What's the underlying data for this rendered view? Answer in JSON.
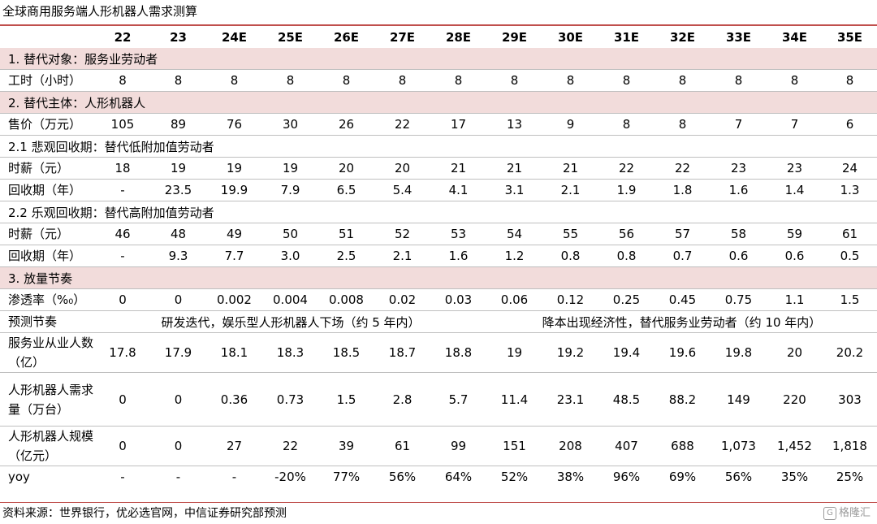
{
  "title": "全球商用服务端人形机器人需求测算",
  "years": [
    "22",
    "23",
    "24E",
    "25E",
    "26E",
    "27E",
    "28E",
    "29E",
    "30E",
    "31E",
    "32E",
    "33E",
    "34E",
    "35E"
  ],
  "sections": {
    "s1": "1. 替代对象：服务业劳动者",
    "s2": "2. 替代主体：人形机器人",
    "s21": "2.1 悲观回收期：替代低附加值劳动者",
    "s22": "2.2 乐观回收期：替代高附加值劳动者",
    "s3": "3. 放量节奏"
  },
  "rows": {
    "hours": {
      "label": "工时（小时）",
      "values": [
        "8",
        "8",
        "8",
        "8",
        "8",
        "8",
        "8",
        "8",
        "8",
        "8",
        "8",
        "8",
        "8",
        "8"
      ]
    },
    "price": {
      "label": "售价（万元）",
      "values": [
        "105",
        "89",
        "76",
        "30",
        "26",
        "22",
        "17",
        "13",
        "9",
        "8",
        "8",
        "7",
        "7",
        "6"
      ]
    },
    "wage_low": {
      "label": "时薪（元）",
      "values": [
        "18",
        "19",
        "19",
        "19",
        "20",
        "20",
        "21",
        "21",
        "21",
        "22",
        "22",
        "23",
        "23",
        "24"
      ]
    },
    "payback_low": {
      "label": "回收期（年）",
      "values": [
        "-",
        "23.5",
        "19.9",
        "7.9",
        "6.5",
        "5.4",
        "4.1",
        "3.1",
        "2.1",
        "1.9",
        "1.8",
        "1.6",
        "1.4",
        "1.3"
      ]
    },
    "wage_high": {
      "label": "时薪（元）",
      "values": [
        "46",
        "48",
        "49",
        "50",
        "51",
        "52",
        "53",
        "54",
        "55",
        "56",
        "57",
        "58",
        "59",
        "61"
      ]
    },
    "payback_high": {
      "label": "回收期（年）",
      "values": [
        "-",
        "9.3",
        "7.7",
        "3.0",
        "2.5",
        "2.1",
        "1.6",
        "1.2",
        "0.8",
        "0.8",
        "0.7",
        "0.6",
        "0.6",
        "0.5"
      ]
    },
    "penetration": {
      "label": "渗透率（%₀）",
      "values": [
        "0",
        "0",
        "0.002",
        "0.004",
        "0.008",
        "0.02",
        "0.03",
        "0.06",
        "0.12",
        "0.25",
        "0.45",
        "0.75",
        "1.1",
        "1.5"
      ]
    },
    "rhythm": {
      "label": "预测节奏",
      "phase1": "研发迭代，娱乐型人形机器人下场（约 5 年内）",
      "phase2": "降本出现经济性，替代服务业劳动者（约 10 年内）"
    },
    "workers": {
      "label": "服务业从业人数（亿）",
      "values": [
        "17.8",
        "17.9",
        "18.1",
        "18.3",
        "18.5",
        "18.7",
        "18.8",
        "19",
        "19.2",
        "19.4",
        "19.6",
        "19.8",
        "20",
        "20.2"
      ]
    },
    "demand": {
      "label": "人形机器人需求量（万台）",
      "values": [
        "0",
        "0",
        "0.36",
        "0.73",
        "1.5",
        "2.8",
        "5.7",
        "11.4",
        "23.1",
        "48.5",
        "88.2",
        "149",
        "220",
        "303"
      ]
    },
    "scale": {
      "label": "人形机器人规模（亿元）",
      "values": [
        "0",
        "0",
        "27",
        "22",
        "39",
        "61",
        "99",
        "151",
        "208",
        "407",
        "688",
        "1,073",
        "1,452",
        "1,818"
      ]
    },
    "yoy": {
      "label": "yoy",
      "values": [
        "-",
        "-",
        "-",
        "-20%",
        "77%",
        "56%",
        "64%",
        "52%",
        "38%",
        "96%",
        "69%",
        "56%",
        "35%",
        "25%"
      ]
    }
  },
  "source": "资料来源：世界银行，优必选官网，中信证券研究部预测",
  "watermark": "格隆汇"
}
